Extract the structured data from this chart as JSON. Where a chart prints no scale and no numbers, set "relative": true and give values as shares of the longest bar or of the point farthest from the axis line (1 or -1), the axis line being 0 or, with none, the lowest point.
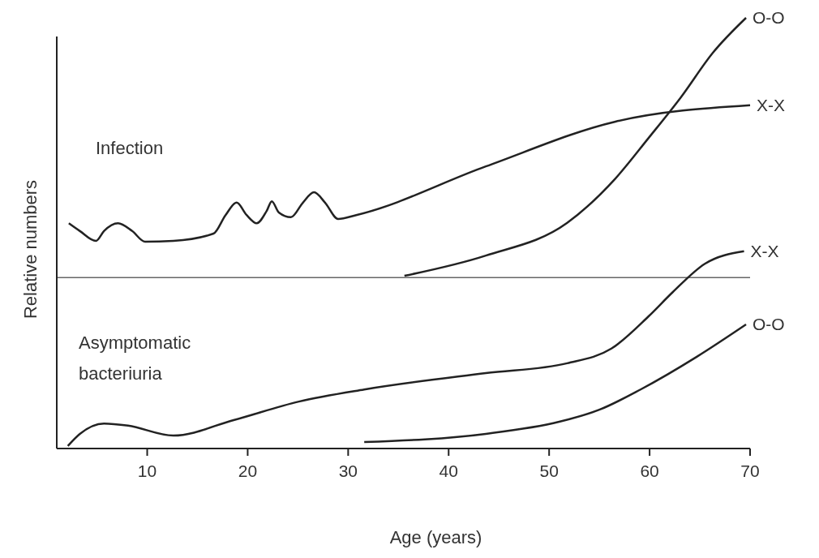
{
  "chart_data": {
    "type": "line",
    "relative": true,
    "xlabel": "Age (years)",
    "ylabel": "Relative numbers",
    "xlim": [
      1,
      70
    ],
    "xticks": [
      10,
      20,
      30,
      40,
      50,
      60,
      70
    ],
    "grid": false,
    "legend": false,
    "marker": "none",
    "line_style": "solid",
    "annotations": [
      "Infection",
      "Asymptomatic bacteriuria"
    ],
    "ref_lines": [
      {
        "axis": "y",
        "value": 0.397,
        "color": "#666666"
      }
    ],
    "series": [
      {
        "name": "X-X",
        "color": "#222222",
        "x": [
          2.2,
          3.3,
          4.9,
          5.7,
          7.1,
          8.5,
          9.8,
          12.6,
          16.6,
          17.8,
          18.9,
          19.9,
          20.9,
          21.9,
          22.4,
          23.1,
          24.3,
          25.5,
          26.6,
          27.7,
          29.0,
          30.8,
          43.7,
          56.6,
          70
        ],
        "values": [
          0.523,
          0.505,
          0.482,
          0.505,
          0.523,
          0.505,
          0.48,
          0.482,
          0.499,
          0.542,
          0.571,
          0.542,
          0.523,
          0.552,
          0.574,
          0.548,
          0.537,
          0.571,
          0.595,
          0.571,
          0.533,
          0.542,
          0.655,
          0.759,
          0.797
        ]
      },
      {
        "name": "O-O",
        "color": "#222222",
        "x": [
          35.6,
          43.7,
          51.8,
          56.6,
          59.9,
          63.1,
          66.3,
          69.6
        ],
        "values": [
          0.401,
          0.448,
          0.524,
          0.627,
          0.721,
          0.815,
          0.919,
          1.0
        ]
      },
      {
        "name": "X-X",
        "color": "#222222",
        "x": [
          2.1,
          3.3,
          5.7,
          8.1,
          12.6,
          18.6,
          25.1,
          31.6,
          43.7,
          51.8,
          56.2,
          59.9,
          62.3,
          65.5,
          69.4
        ],
        "values": [
          0.006,
          0.034,
          0.058,
          0.053,
          0.03,
          0.066,
          0.109,
          0.137,
          0.175,
          0.198,
          0.232,
          0.307,
          0.363,
          0.429,
          0.458
        ]
      },
      {
        "name": "O-O",
        "color": "#222222",
        "x": [
          31.6,
          43.7,
          51.0,
          55.0,
          59.1,
          64.7,
          69.6
        ],
        "values": [
          0.015,
          0.034,
          0.062,
          0.09,
          0.137,
          0.213,
          0.288
        ]
      }
    ]
  }
}
